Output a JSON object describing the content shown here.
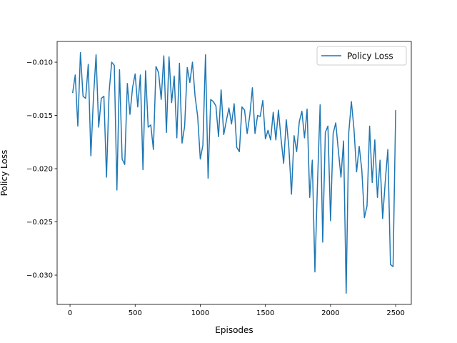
{
  "chart_data": {
    "type": "line",
    "x_label": "Episodes",
    "y_label": "Policy Loss",
    "x": [
      20,
      40,
      60,
      80,
      100,
      120,
      140,
      160,
      180,
      200,
      220,
      240,
      260,
      280,
      300,
      320,
      340,
      360,
      380,
      400,
      420,
      440,
      460,
      480,
      500,
      520,
      540,
      560,
      580,
      600,
      620,
      640,
      660,
      680,
      700,
      720,
      740,
      760,
      780,
      800,
      820,
      840,
      860,
      880,
      900,
      920,
      940,
      960,
      980,
      1000,
      1020,
      1040,
      1060,
      1080,
      1100,
      1120,
      1140,
      1160,
      1180,
      1200,
      1220,
      1240,
      1260,
      1280,
      1300,
      1320,
      1340,
      1360,
      1380,
      1400,
      1420,
      1440,
      1460,
      1480,
      1500,
      1520,
      1540,
      1560,
      1580,
      1600,
      1620,
      1640,
      1660,
      1680,
      1700,
      1720,
      1740,
      1760,
      1780,
      1800,
      1820,
      1840,
      1860,
      1880,
      1900,
      1920,
      1940,
      1960,
      1980,
      2000,
      2020,
      2040,
      2060,
      2080,
      2100,
      2120,
      2140,
      2160,
      2180,
      2200,
      2220,
      2240,
      2260,
      2280,
      2300,
      2320,
      2340,
      2360,
      2380,
      2400,
      2420,
      2440,
      2460,
      2480,
      2500
    ],
    "series": [
      {
        "name": "Policy Loss",
        "color": "#1f77b4",
        "values": [
          -0.0129,
          -0.0112,
          -0.016,
          -0.0091,
          -0.0132,
          -0.0134,
          -0.0102,
          -0.0188,
          -0.0133,
          -0.0093,
          -0.0161,
          -0.0134,
          -0.0132,
          -0.0208,
          -0.0128,
          -0.01,
          -0.0103,
          -0.022,
          -0.0107,
          -0.0191,
          -0.0196,
          -0.012,
          -0.0149,
          -0.0124,
          -0.0111,
          -0.0142,
          -0.0112,
          -0.0201,
          -0.0108,
          -0.0161,
          -0.0159,
          -0.0182,
          -0.0104,
          -0.011,
          -0.0135,
          -0.0094,
          -0.0166,
          -0.0095,
          -0.0138,
          -0.0113,
          -0.0171,
          -0.0101,
          -0.0176,
          -0.016,
          -0.0105,
          -0.0119,
          -0.01,
          -0.0132,
          -0.0151,
          -0.0191,
          -0.0178,
          -0.0093,
          -0.0209,
          -0.0135,
          -0.0137,
          -0.0141,
          -0.017,
          -0.0126,
          -0.0168,
          -0.0155,
          -0.0143,
          -0.0158,
          -0.0139,
          -0.018,
          -0.0184,
          -0.0142,
          -0.0145,
          -0.0167,
          -0.015,
          -0.0124,
          -0.0167,
          -0.015,
          -0.0151,
          -0.0136,
          -0.0172,
          -0.0164,
          -0.0173,
          -0.0147,
          -0.0173,
          -0.0145,
          -0.0172,
          -0.0195,
          -0.0154,
          -0.018,
          -0.0224,
          -0.0169,
          -0.0184,
          -0.0156,
          -0.0146,
          -0.0171,
          -0.0144,
          -0.0227,
          -0.0192,
          -0.0297,
          -0.0213,
          -0.014,
          -0.0269,
          -0.0166,
          -0.016,
          -0.0249,
          -0.0167,
          -0.0157,
          -0.0183,
          -0.0208,
          -0.0174,
          -0.0317,
          -0.0166,
          -0.0137,
          -0.0163,
          -0.0203,
          -0.0179,
          -0.0201,
          -0.0246,
          -0.0235,
          -0.016,
          -0.0213,
          -0.0173,
          -0.0227,
          -0.0192,
          -0.0247,
          -0.0212,
          -0.0182,
          -0.029,
          -0.0292,
          -0.0145
        ]
      }
    ],
    "xlim": [
      -99,
      2620
    ],
    "xticks": [
      0,
      500,
      1000,
      1500,
      2000,
      2500
    ],
    "ylim": [
      -0.03275,
      -0.00805
    ],
    "yticks": [
      {
        "value": -0.03,
        "label": "−0.030"
      },
      {
        "value": -0.025,
        "label": "−0.025"
      },
      {
        "value": -0.02,
        "label": "−0.020"
      },
      {
        "value": -0.015,
        "label": "−0.015"
      },
      {
        "value": -0.01,
        "label": "−0.010"
      }
    ],
    "legend": "upper right"
  }
}
